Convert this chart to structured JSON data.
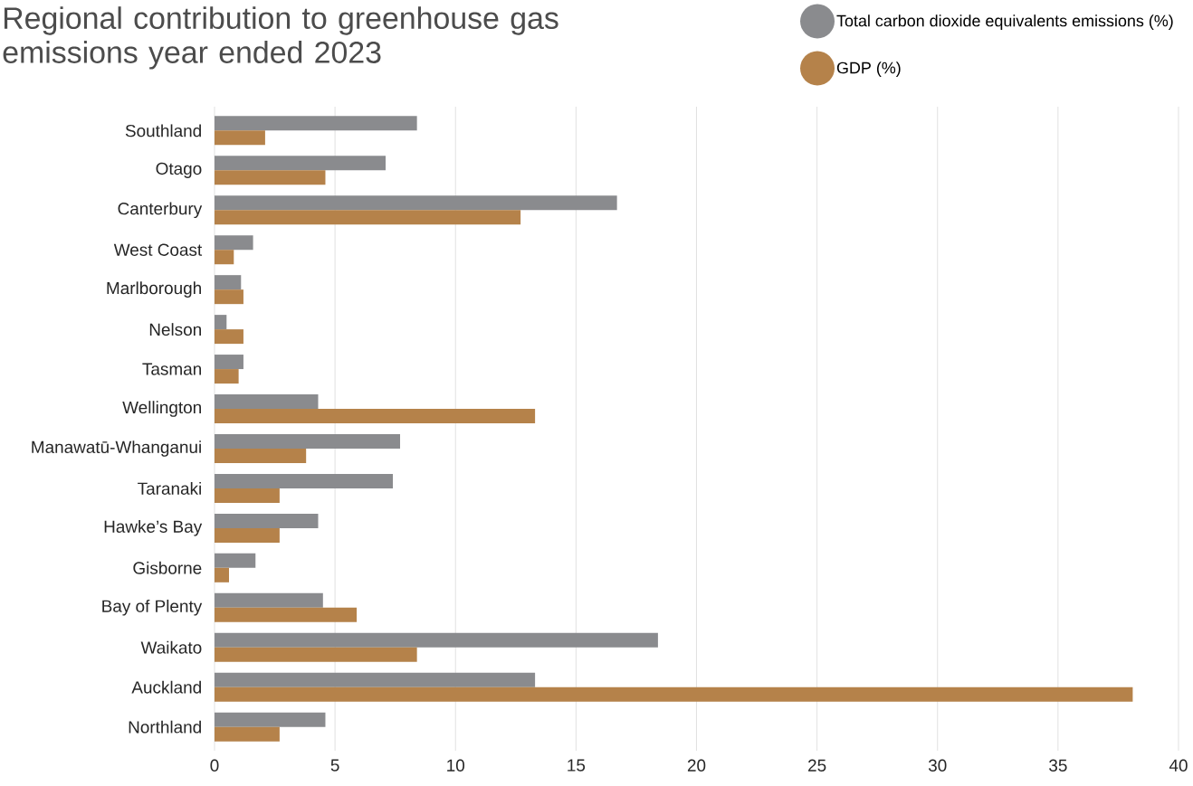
{
  "chart_data": {
    "type": "bar",
    "orientation": "horizontal",
    "title": "Regional contribution to greenhouse gas emissions year ended 2023",
    "categories": [
      "Southland",
      "Otago",
      "Canterbury",
      "West Coast",
      "Marlborough",
      "Nelson",
      "Tasman",
      "Wellington",
      "Manawatū-Whanganui",
      "Taranaki",
      "Hawke’s Bay",
      "Gisborne",
      "Bay of Plenty",
      "Waikato",
      "Auckland",
      "Northland"
    ],
    "series": [
      {
        "name": "Total carbon dioxide equivalents emissions (%)",
        "color": "#8a8b8e",
        "values": [
          8.4,
          7.1,
          16.7,
          1.6,
          1.1,
          0.5,
          1.2,
          4.3,
          7.7,
          7.4,
          4.3,
          1.7,
          4.5,
          18.4,
          13.3,
          4.6
        ]
      },
      {
        "name": "GDP (%)",
        "color": "#b5824a",
        "values": [
          2.1,
          4.6,
          12.7,
          0.8,
          1.2,
          1.2,
          1.0,
          13.3,
          3.8,
          2.7,
          2.7,
          0.6,
          5.9,
          8.4,
          38.1,
          2.7
        ]
      }
    ],
    "xlim": [
      0,
      40
    ],
    "xticks": [
      0,
      5,
      10,
      15,
      20,
      25,
      30,
      35,
      40
    ],
    "grid": "x",
    "legend": "top right"
  }
}
